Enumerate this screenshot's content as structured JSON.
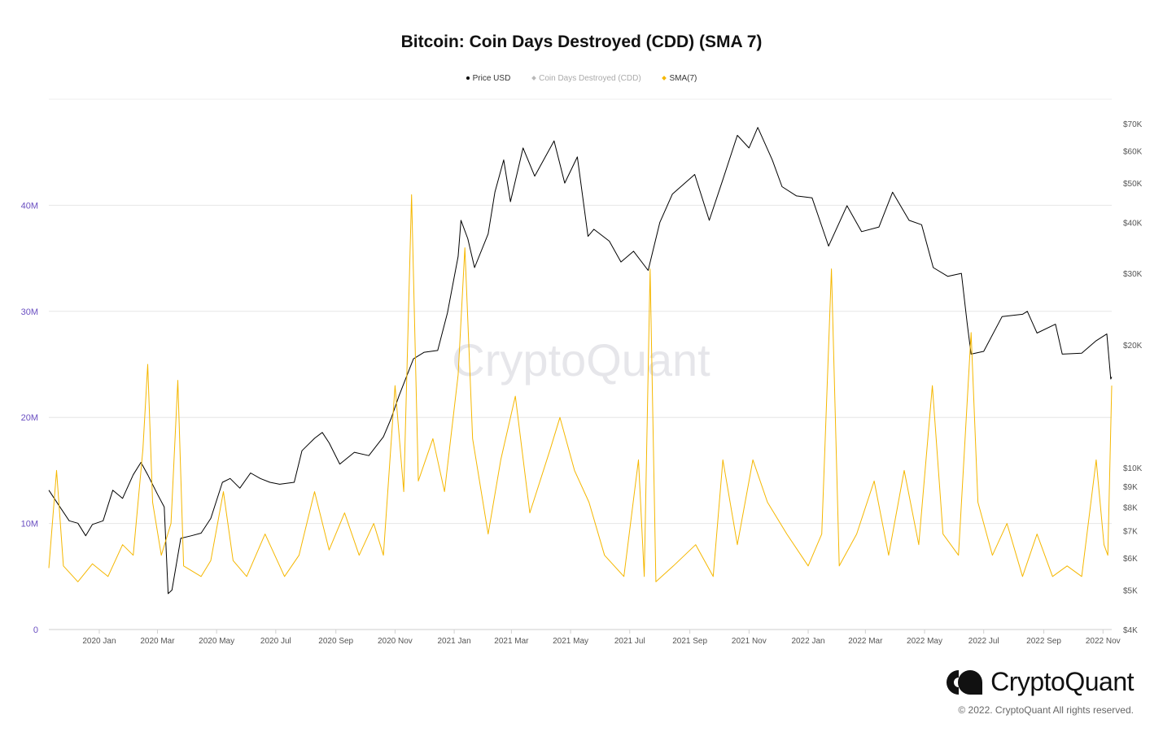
{
  "title": "Bitcoin: Coin Days Destroyed (CDD) (SMA 7)",
  "legend": [
    {
      "label": "Price USD",
      "color": "#000000"
    },
    {
      "label": "Coin Days Destroyed (CDD)",
      "color": "#b8b8b8"
    },
    {
      "label": "SMA(7)",
      "color": "#f5b700"
    }
  ],
  "watermark": "CryptoQuant",
  "brand": {
    "name": "CryptoQuant",
    "copyright": "© 2022. CryptoQuant All rights reserved."
  },
  "chart_data": {
    "type": "line",
    "x_labels": [
      "2020 Jan",
      "2020 Mar",
      "2020 May",
      "2020 Jul",
      "2020 Sep",
      "2020 Nov",
      "2021 Jan",
      "2021 Mar",
      "2021 May",
      "2021 Jul",
      "2021 Sep",
      "2021 Nov",
      "2022 Jan",
      "2022 Mar",
      "2022 May",
      "2022 Jul",
      "2022 Sep",
      "2022 Nov"
    ],
    "x_range": [
      "2019-11-10",
      "2022-11-10"
    ],
    "y_left": {
      "ticks": [
        "0",
        "10M",
        "20M",
        "30M",
        "40M"
      ],
      "ylim": [
        0,
        50000000
      ],
      "scale": "linear"
    },
    "y_right": {
      "ticks": [
        "$4K",
        "$5K",
        "$6K",
        "$7K",
        "$8K",
        "$9K",
        "$10K",
        "$20K",
        "$30K",
        "$40K",
        "$50K",
        "$60K",
        "$70K"
      ],
      "ylim": [
        4000,
        70000
      ],
      "scale": "log"
    },
    "grid": true,
    "legend_position": "top-center",
    "series": [
      {
        "name": "Price USD",
        "axis": "right",
        "color": "#000000",
        "points": [
          [
            "2019-11-10",
            8800
          ],
          [
            "2019-11-20",
            8100
          ],
          [
            "2019-12-01",
            7400
          ],
          [
            "2019-12-10",
            7300
          ],
          [
            "2019-12-18",
            6800
          ],
          [
            "2019-12-25",
            7250
          ],
          [
            "2020-01-05",
            7400
          ],
          [
            "2020-01-15",
            8800
          ],
          [
            "2020-01-25",
            8400
          ],
          [
            "2020-02-05",
            9600
          ],
          [
            "2020-02-13",
            10300
          ],
          [
            "2020-02-20",
            9600
          ],
          [
            "2020-03-01",
            8600
          ],
          [
            "2020-03-08",
            8000
          ],
          [
            "2020-03-12",
            4900
          ],
          [
            "2020-03-16",
            5000
          ],
          [
            "2020-03-25",
            6700
          ],
          [
            "2020-04-05",
            6800
          ],
          [
            "2020-04-15",
            6900
          ],
          [
            "2020-04-25",
            7500
          ],
          [
            "2020-05-07",
            9200
          ],
          [
            "2020-05-15",
            9400
          ],
          [
            "2020-05-25",
            8900
          ],
          [
            "2020-06-05",
            9700
          ],
          [
            "2020-06-15",
            9400
          ],
          [
            "2020-06-25",
            9200
          ],
          [
            "2020-07-05",
            9100
          ],
          [
            "2020-07-20",
            9200
          ],
          [
            "2020-07-28",
            11000
          ],
          [
            "2020-08-10",
            11800
          ],
          [
            "2020-08-18",
            12200
          ],
          [
            "2020-08-25",
            11500
          ],
          [
            "2020-09-05",
            10200
          ],
          [
            "2020-09-20",
            10900
          ],
          [
            "2020-10-05",
            10700
          ],
          [
            "2020-10-20",
            11900
          ],
          [
            "2020-10-28",
            13200
          ],
          [
            "2020-11-05",
            15000
          ],
          [
            "2020-11-20",
            18500
          ],
          [
            "2020-12-01",
            19200
          ],
          [
            "2020-12-15",
            19400
          ],
          [
            "2020-12-25",
            24000
          ],
          [
            "2021-01-05",
            33000
          ],
          [
            "2021-01-08",
            40500
          ],
          [
            "2021-01-15",
            36500
          ],
          [
            "2021-01-22",
            31000
          ],
          [
            "2021-02-05",
            37500
          ],
          [
            "2021-02-12",
            47500
          ],
          [
            "2021-02-21",
            57000
          ],
          [
            "2021-02-28",
            45000
          ],
          [
            "2021-03-13",
            61000
          ],
          [
            "2021-03-25",
            52000
          ],
          [
            "2021-04-14",
            63500
          ],
          [
            "2021-04-25",
            50000
          ],
          [
            "2021-05-08",
            58000
          ],
          [
            "2021-05-19",
            37000
          ],
          [
            "2021-05-25",
            38500
          ],
          [
            "2021-06-10",
            36000
          ],
          [
            "2021-06-22",
            32000
          ],
          [
            "2021-07-05",
            34000
          ],
          [
            "2021-07-20",
            30500
          ],
          [
            "2021-08-01",
            40000
          ],
          [
            "2021-08-14",
            47000
          ],
          [
            "2021-09-06",
            52500
          ],
          [
            "2021-09-21",
            40500
          ],
          [
            "2021-10-05",
            51000
          ],
          [
            "2021-10-20",
            65500
          ],
          [
            "2021-11-01",
            61000
          ],
          [
            "2021-11-10",
            68500
          ],
          [
            "2021-11-25",
            57000
          ],
          [
            "2021-12-05",
            49000
          ],
          [
            "2021-12-20",
            46500
          ],
          [
            "2022-01-05",
            46000
          ],
          [
            "2022-01-22",
            35000
          ],
          [
            "2022-02-10",
            44000
          ],
          [
            "2022-02-25",
            38000
          ],
          [
            "2022-03-15",
            39000
          ],
          [
            "2022-03-29",
            47500
          ],
          [
            "2022-04-15",
            40500
          ],
          [
            "2022-04-28",
            39500
          ],
          [
            "2022-05-10",
            31000
          ],
          [
            "2022-05-25",
            29500
          ],
          [
            "2022-06-08",
            30000
          ],
          [
            "2022-06-14",
            22500
          ],
          [
            "2022-06-18",
            19000
          ],
          [
            "2022-07-01",
            19300
          ],
          [
            "2022-07-20",
            23500
          ],
          [
            "2022-08-10",
            23800
          ],
          [
            "2022-08-15",
            24200
          ],
          [
            "2022-08-25",
            21400
          ],
          [
            "2022-09-13",
            22500
          ],
          [
            "2022-09-20",
            19000
          ],
          [
            "2022-10-10",
            19100
          ],
          [
            "2022-10-25",
            20500
          ],
          [
            "2022-11-05",
            21300
          ],
          [
            "2022-11-09",
            16500
          ],
          [
            "2022-11-10",
            16700
          ]
        ]
      },
      {
        "name": "SMA(7)",
        "axis": "left",
        "color": "#f5b700",
        "points": [
          [
            "2019-11-10",
            5800000
          ],
          [
            "2019-11-18",
            15000000
          ],
          [
            "2019-11-25",
            6000000
          ],
          [
            "2019-12-10",
            4500000
          ],
          [
            "2019-12-25",
            6200000
          ],
          [
            "2020-01-10",
            5000000
          ],
          [
            "2020-01-25",
            8000000
          ],
          [
            "2020-02-05",
            7000000
          ],
          [
            "2020-02-15",
            17000000
          ],
          [
            "2020-02-20",
            25000000
          ],
          [
            "2020-02-25",
            12000000
          ],
          [
            "2020-03-05",
            7000000
          ],
          [
            "2020-03-15",
            10000000
          ],
          [
            "2020-03-22",
            23500000
          ],
          [
            "2020-03-28",
            6000000
          ],
          [
            "2020-04-15",
            5000000
          ],
          [
            "2020-04-25",
            6500000
          ],
          [
            "2020-05-08",
            13000000
          ],
          [
            "2020-05-18",
            6500000
          ],
          [
            "2020-06-01",
            5000000
          ],
          [
            "2020-06-20",
            9000000
          ],
          [
            "2020-07-10",
            5000000
          ],
          [
            "2020-07-25",
            7000000
          ],
          [
            "2020-08-10",
            13000000
          ],
          [
            "2020-08-25",
            7500000
          ],
          [
            "2020-09-10",
            11000000
          ],
          [
            "2020-09-25",
            7000000
          ],
          [
            "2020-10-10",
            10000000
          ],
          [
            "2020-10-20",
            7000000
          ],
          [
            "2020-11-01",
            23000000
          ],
          [
            "2020-11-10",
            13000000
          ],
          [
            "2020-11-18",
            41000000
          ],
          [
            "2020-11-25",
            14000000
          ],
          [
            "2020-12-10",
            18000000
          ],
          [
            "2020-12-22",
            13000000
          ],
          [
            "2021-01-05",
            24000000
          ],
          [
            "2021-01-12",
            36000000
          ],
          [
            "2021-01-20",
            18000000
          ],
          [
            "2021-02-05",
            9000000
          ],
          [
            "2021-02-18",
            16000000
          ],
          [
            "2021-03-05",
            22000000
          ],
          [
            "2021-03-20",
            11000000
          ],
          [
            "2021-04-10",
            17000000
          ],
          [
            "2021-04-20",
            20000000
          ],
          [
            "2021-05-05",
            15000000
          ],
          [
            "2021-05-20",
            12000000
          ],
          [
            "2021-06-05",
            7000000
          ],
          [
            "2021-06-25",
            5000000
          ],
          [
            "2021-07-10",
            16000000
          ],
          [
            "2021-07-16",
            5000000
          ],
          [
            "2021-07-22",
            34000000
          ],
          [
            "2021-07-28",
            4500000
          ],
          [
            "2021-08-15",
            6000000
          ],
          [
            "2021-09-07",
            8000000
          ],
          [
            "2021-09-25",
            5000000
          ],
          [
            "2021-10-05",
            16000000
          ],
          [
            "2021-10-20",
            8000000
          ],
          [
            "2021-11-05",
            16000000
          ],
          [
            "2021-11-20",
            12000000
          ],
          [
            "2021-12-10",
            9000000
          ],
          [
            "2022-01-01",
            6000000
          ],
          [
            "2022-01-15",
            9000000
          ],
          [
            "2022-01-25",
            34000000
          ],
          [
            "2022-02-02",
            6000000
          ],
          [
            "2022-02-20",
            9000000
          ],
          [
            "2022-03-10",
            14000000
          ],
          [
            "2022-03-25",
            7000000
          ],
          [
            "2022-04-10",
            15000000
          ],
          [
            "2022-04-25",
            8000000
          ],
          [
            "2022-05-09",
            23000000
          ],
          [
            "2022-05-20",
            9000000
          ],
          [
            "2022-06-05",
            7000000
          ],
          [
            "2022-06-18",
            28000000
          ],
          [
            "2022-06-25",
            12000000
          ],
          [
            "2022-07-10",
            7000000
          ],
          [
            "2022-07-25",
            10000000
          ],
          [
            "2022-08-10",
            5000000
          ],
          [
            "2022-08-25",
            9000000
          ],
          [
            "2022-09-10",
            5000000
          ],
          [
            "2022-09-25",
            6000000
          ],
          [
            "2022-10-10",
            5000000
          ],
          [
            "2022-10-25",
            16000000
          ],
          [
            "2022-11-02",
            8000000
          ],
          [
            "2022-11-06",
            7000000
          ],
          [
            "2022-11-10",
            23000000
          ]
        ]
      }
    ]
  }
}
